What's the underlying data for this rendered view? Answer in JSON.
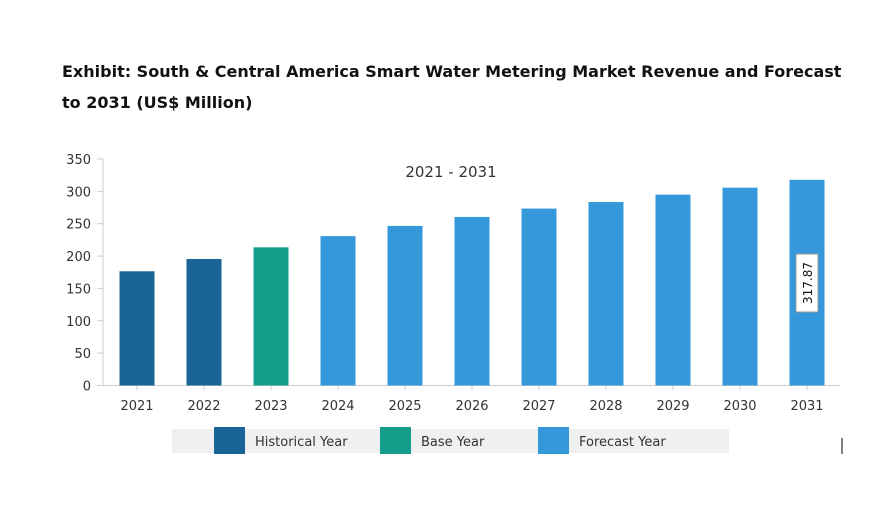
{
  "chart_data": {
    "type": "bar",
    "title": "Exhibit: South & Central America Smart Water Metering Market Revenue and Forecast to 2031 (US$ Million)",
    "subtitle": "2021 - 2031",
    "categories": [
      "2021",
      "2022",
      "2023",
      "2024",
      "2025",
      "2026",
      "2027",
      "2028",
      "2029",
      "2030",
      "2031"
    ],
    "values": [
      176.5,
      195.5,
      213.5,
      230.8,
      246.6,
      260.5,
      273.4,
      283.5,
      294.9,
      305.7,
      317.87
    ],
    "bar_types": [
      "historical",
      "historical",
      "base",
      "forecast",
      "forecast",
      "forecast",
      "forecast",
      "forecast",
      "forecast",
      "forecast",
      "forecast"
    ],
    "data_labels": {
      "10": "317.87"
    },
    "ylim": [
      0,
      350
    ],
    "yticks": [
      0,
      50,
      100,
      150,
      200,
      250,
      300,
      350
    ],
    "grid": false,
    "legend_position": "bottom",
    "legend": [
      {
        "key": "historical",
        "label": "Historical Year",
        "color": "#1a6496"
      },
      {
        "key": "base",
        "label": "Base Year",
        "color": "#139e8c"
      },
      {
        "key": "forecast",
        "label": "Forecast Year",
        "color": "#3498db"
      }
    ]
  }
}
